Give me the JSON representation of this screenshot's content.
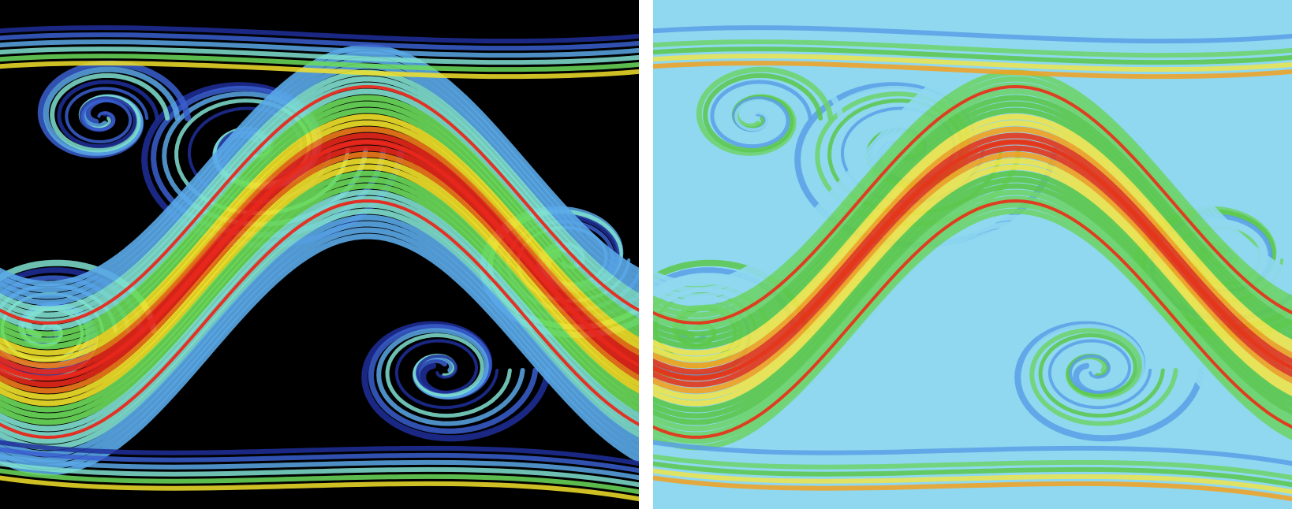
{
  "figure": {
    "panels": [
      {
        "id": "left",
        "background": "#000000",
        "colormap": [
          "#000000",
          "#1f2f9a",
          "#3a5fd0",
          "#5aa8e8",
          "#7fe0d0",
          "#6cdc5a",
          "#f2e22a",
          "#f07a1a",
          "#e8281c"
        ]
      },
      {
        "id": "right",
        "background": "#8fd8f0",
        "colormap": [
          "#2b3fb8",
          "#5aa0e6",
          "#8fd8f0",
          "#6ed46a",
          "#5cc84a",
          "#eee44a",
          "#f3a11f",
          "#e4361a"
        ]
      }
    ],
    "separator_color": "#ffffff"
  }
}
